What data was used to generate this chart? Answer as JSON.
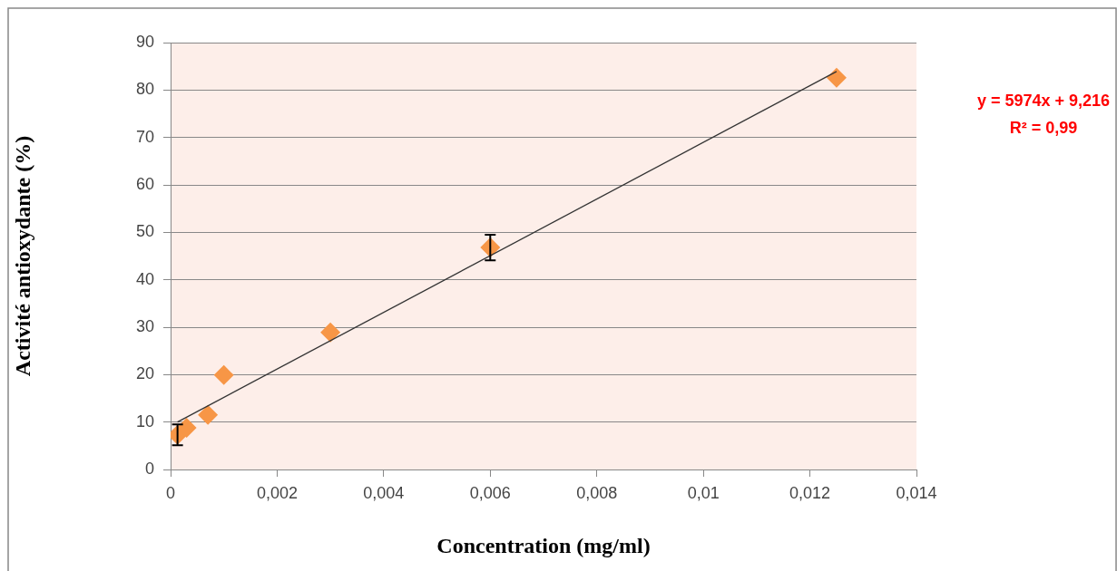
{
  "chart_data": {
    "type": "scatter",
    "xlabel": "Concentration (mg/ml)",
    "ylabel": "Activité antioxydante (%)",
    "xlim": [
      0,
      0.014
    ],
    "xticks": [
      0,
      {
        "value": 0.002,
        "label": "0,002"
      },
      {
        "value": 0.004,
        "label": "0,004"
      },
      {
        "value": 0.006,
        "label": "0,006"
      },
      {
        "value": 0.008,
        "label": "0,008"
      },
      {
        "value": 0.01,
        "label": "0,01"
      },
      {
        "value": 0.012,
        "label": "0,012"
      },
      {
        "value": 0.014,
        "label": "0,014"
      }
    ],
    "ylim": [
      0,
      90
    ],
    "yticks": [
      0,
      10,
      20,
      30,
      40,
      50,
      60,
      70,
      80,
      90
    ],
    "grid": "y",
    "legend": false,
    "marker": "diamond",
    "series": [
      {
        "color": "#f79646",
        "x": [
          0.00013,
          0.0003,
          0.0007,
          0.001,
          0.003,
          0.006,
          0.0125
        ],
        "values": [
          7.3,
          8.8,
          11.5,
          19.9,
          28.9,
          46.8,
          82.6
        ],
        "errors": [
          2.2,
          null,
          null,
          null,
          null,
          2.7,
          null
        ]
      },
      {
        "type": "line",
        "color": "#333333",
        "x": [
          0.00013,
          0.0125
        ],
        "values": [
          10.0,
          83.9
        ],
        "marker": "none"
      }
    ],
    "annotations": [
      "y = 5974x + 9,216",
      "R² = 0,99"
    ]
  }
}
